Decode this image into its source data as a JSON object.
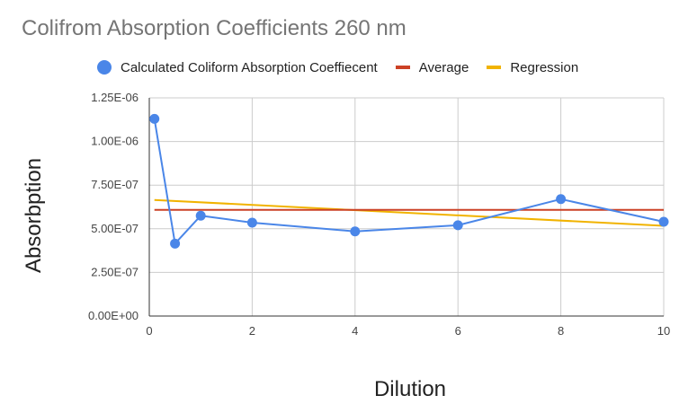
{
  "chart_data": {
    "type": "line",
    "title": "Colifrom Absorption Coefficients 260 nm",
    "xlabel": "Dilution",
    "ylabel": "Absorbption",
    "xlim": [
      0,
      10
    ],
    "ylim": [
      0,
      1.25e-06
    ],
    "x_ticks": [
      0,
      2,
      4,
      6,
      8,
      10
    ],
    "x_tick_labels": [
      "0",
      "2",
      "4",
      "6",
      "8",
      "10"
    ],
    "y_ticks": [
      0,
      2.5e-07,
      5e-07,
      7.5e-07,
      1e-06,
      1.25e-06
    ],
    "y_tick_labels": [
      "0.00E+00",
      "2.50E-07",
      "5.00E-07",
      "7.50E-07",
      "1.00E-06",
      "1.25E-06"
    ],
    "grid": true,
    "legend_position": "top",
    "series": [
      {
        "name": "Calculated Coliform Absorption Coeffiecent",
        "color": "#4a86e8",
        "marker": "circle",
        "x": [
          0.1,
          0.5,
          1,
          2,
          4,
          6,
          8,
          10
        ],
        "y": [
          1.13e-06,
          4.15e-07,
          5.75e-07,
          5.35e-07,
          4.85e-07,
          5.2e-07,
          6.7e-07,
          5.4e-07
        ]
      },
      {
        "name": "Average",
        "color": "#cc4125",
        "marker": "none",
        "x": [
          0.1,
          10
        ],
        "y": [
          6.08e-07,
          6.08e-07
        ]
      },
      {
        "name": "Regression",
        "color": "#f1b300",
        "marker": "none",
        "x": [
          0.1,
          10
        ],
        "y": [
          6.65e-07,
          5.17e-07
        ]
      }
    ]
  }
}
